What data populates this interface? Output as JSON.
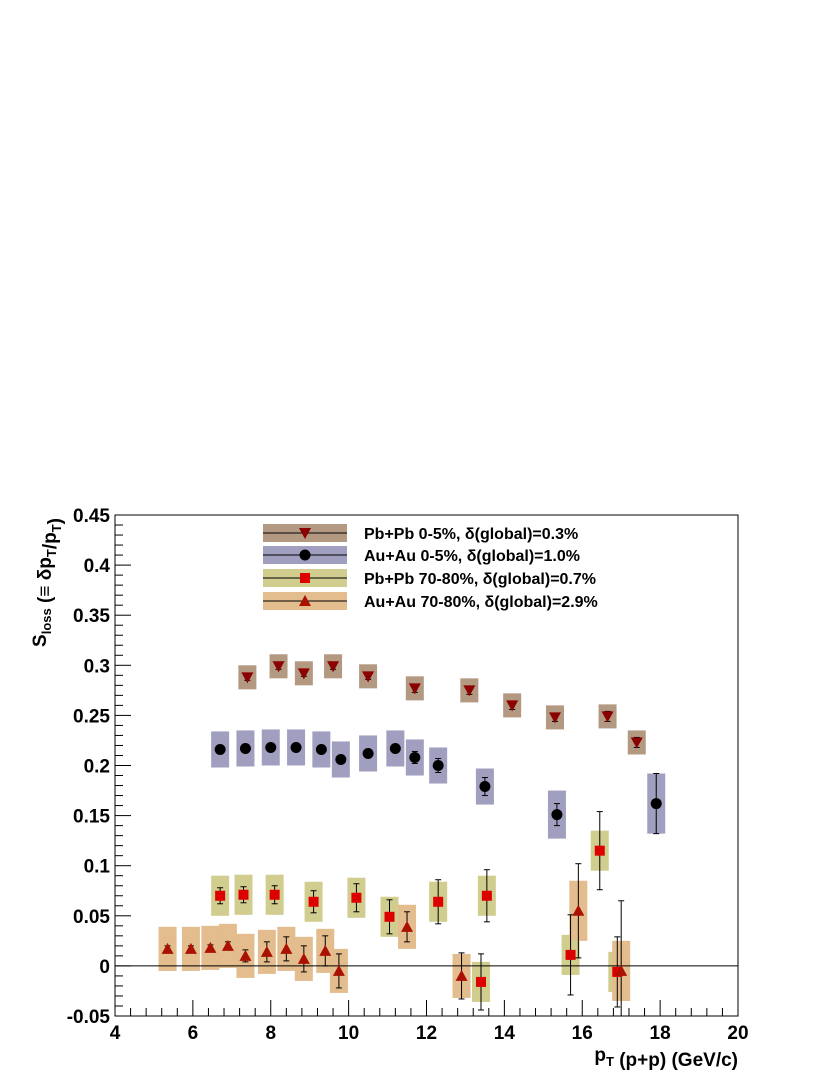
{
  "chart_data": {
    "type": "scatter",
    "xlabel": "p_T (p+p) (GeV/c)",
    "ylabel": "S_loss (≡ δp_T/p_T)",
    "xlim": [
      4,
      20
    ],
    "ylim": [
      -0.05,
      0.45
    ],
    "xticks": [
      "4",
      "6",
      "8",
      "10",
      "12",
      "14",
      "16",
      "18",
      "20"
    ],
    "yticks": [
      "-0.05",
      "0",
      "0.05",
      "0.1",
      "0.15",
      "0.2",
      "0.25",
      "0.3",
      "0.35",
      "0.4",
      "0.45"
    ],
    "grid": false,
    "legend_position": "top-center",
    "series": [
      {
        "name": "Pb+Pb 0-5%, δ(global)=0.3%",
        "marker": "triangle-down",
        "marker_color": "#8b0000",
        "band_color": "#b39882",
        "points": [
          {
            "x": 7.4,
            "y": 0.288,
            "err": 0.003,
            "sys": 0.012
          },
          {
            "x": 8.2,
            "y": 0.299,
            "err": 0.003,
            "sys": 0.012
          },
          {
            "x": 8.85,
            "y": 0.292,
            "err": 0.003,
            "sys": 0.012
          },
          {
            "x": 9.6,
            "y": 0.299,
            "err": 0.003,
            "sys": 0.012
          },
          {
            "x": 10.5,
            "y": 0.289,
            "err": 0.003,
            "sys": 0.012
          },
          {
            "x": 11.7,
            "y": 0.277,
            "err": 0.004,
            "sys": 0.012
          },
          {
            "x": 13.1,
            "y": 0.275,
            "err": 0.004,
            "sys": 0.012
          },
          {
            "x": 14.2,
            "y": 0.26,
            "err": 0.004,
            "sys": 0.012
          },
          {
            "x": 15.3,
            "y": 0.248,
            "err": 0.004,
            "sys": 0.012
          },
          {
            "x": 16.65,
            "y": 0.249,
            "err": 0.005,
            "sys": 0.012
          },
          {
            "x": 17.4,
            "y": 0.223,
            "err": 0.005,
            "sys": 0.012
          }
        ]
      },
      {
        "name": "Au+Au 0-5%, δ(global)=1.0%",
        "marker": "circle",
        "marker_color": "#000000",
        "band_color": "#a09fbf",
        "points": [
          {
            "x": 6.7,
            "y": 0.216,
            "err": 0.003,
            "sys": 0.018
          },
          {
            "x": 7.35,
            "y": 0.217,
            "err": 0.003,
            "sys": 0.018
          },
          {
            "x": 8.0,
            "y": 0.218,
            "err": 0.003,
            "sys": 0.018
          },
          {
            "x": 8.65,
            "y": 0.218,
            "err": 0.003,
            "sys": 0.018
          },
          {
            "x": 9.3,
            "y": 0.216,
            "err": 0.003,
            "sys": 0.018
          },
          {
            "x": 9.8,
            "y": 0.206,
            "err": 0.003,
            "sys": 0.018
          },
          {
            "x": 10.5,
            "y": 0.212,
            "err": 0.003,
            "sys": 0.018
          },
          {
            "x": 11.2,
            "y": 0.217,
            "err": 0.003,
            "sys": 0.018
          },
          {
            "x": 11.7,
            "y": 0.208,
            "err": 0.006,
            "sys": 0.018
          },
          {
            "x": 12.3,
            "y": 0.2,
            "err": 0.007,
            "sys": 0.018
          },
          {
            "x": 13.5,
            "y": 0.179,
            "err": 0.009,
            "sys": 0.018
          },
          {
            "x": 15.35,
            "y": 0.151,
            "err": 0.011,
            "sys": 0.024
          },
          {
            "x": 17.9,
            "y": 0.162,
            "err": 0.03,
            "sys": 0.03
          }
        ]
      },
      {
        "name": "Pb+Pb 70-80%, δ(global)=0.7%",
        "marker": "square",
        "marker_color": "#dd0000",
        "band_color": "#d1cd8f",
        "points": [
          {
            "x": 6.7,
            "y": 0.07,
            "err": 0.008,
            "sys": 0.02
          },
          {
            "x": 7.3,
            "y": 0.071,
            "err": 0.008,
            "sys": 0.02
          },
          {
            "x": 8.1,
            "y": 0.071,
            "err": 0.009,
            "sys": 0.02
          },
          {
            "x": 9.1,
            "y": 0.064,
            "err": 0.011,
            "sys": 0.02
          },
          {
            "x": 10.2,
            "y": 0.068,
            "err": 0.014,
            "sys": 0.02
          },
          {
            "x": 11.05,
            "y": 0.049,
            "err": 0.017,
            "sys": 0.02
          },
          {
            "x": 12.3,
            "y": 0.064,
            "err": 0.022,
            "sys": 0.02
          },
          {
            "x": 13.4,
            "y": -0.016,
            "err": 0.028,
            "sys": 0.02
          },
          {
            "x": 13.55,
            "y": 0.07,
            "err": 0.026,
            "sys": 0.02
          },
          {
            "x": 15.7,
            "y": 0.011,
            "err": 0.04,
            "sys": 0.02
          },
          {
            "x": 16.45,
            "y": 0.115,
            "err": 0.039,
            "sys": 0.02
          },
          {
            "x": 16.9,
            "y": -0.006,
            "err": 0.035,
            "sys": 0.02
          }
        ]
      },
      {
        "name": "Au+Au 70-80%, δ(global)=2.9%",
        "marker": "triangle-up",
        "marker_color": "#aa1100",
        "band_color": "#e3bd8e",
        "points": [
          {
            "x": 5.35,
            "y": 0.017,
            "err": 0.003,
            "sys": 0.022
          },
          {
            "x": 5.95,
            "y": 0.017,
            "err": 0.003,
            "sys": 0.022
          },
          {
            "x": 6.45,
            "y": 0.018,
            "err": 0.003,
            "sys": 0.022
          },
          {
            "x": 6.9,
            "y": 0.02,
            "err": 0.004,
            "sys": 0.022
          },
          {
            "x": 7.35,
            "y": 0.01,
            "err": 0.006,
            "sys": 0.022
          },
          {
            "x": 7.9,
            "y": 0.014,
            "err": 0.01,
            "sys": 0.022
          },
          {
            "x": 8.4,
            "y": 0.017,
            "err": 0.012,
            "sys": 0.022
          },
          {
            "x": 8.85,
            "y": 0.007,
            "err": 0.013,
            "sys": 0.022
          },
          {
            "x": 9.4,
            "y": 0.015,
            "err": 0.015,
            "sys": 0.022
          },
          {
            "x": 9.75,
            "y": -0.005,
            "err": 0.017,
            "sys": 0.022
          },
          {
            "x": 11.5,
            "y": 0.039,
            "err": 0.015,
            "sys": 0.022
          },
          {
            "x": 12.9,
            "y": -0.01,
            "err": 0.023,
            "sys": 0.022
          },
          {
            "x": 15.9,
            "y": 0.055,
            "err": 0.047,
            "sys": 0.03
          },
          {
            "x": 17.0,
            "y": -0.005,
            "err": 0.07,
            "sys": 0.03
          }
        ]
      }
    ]
  }
}
